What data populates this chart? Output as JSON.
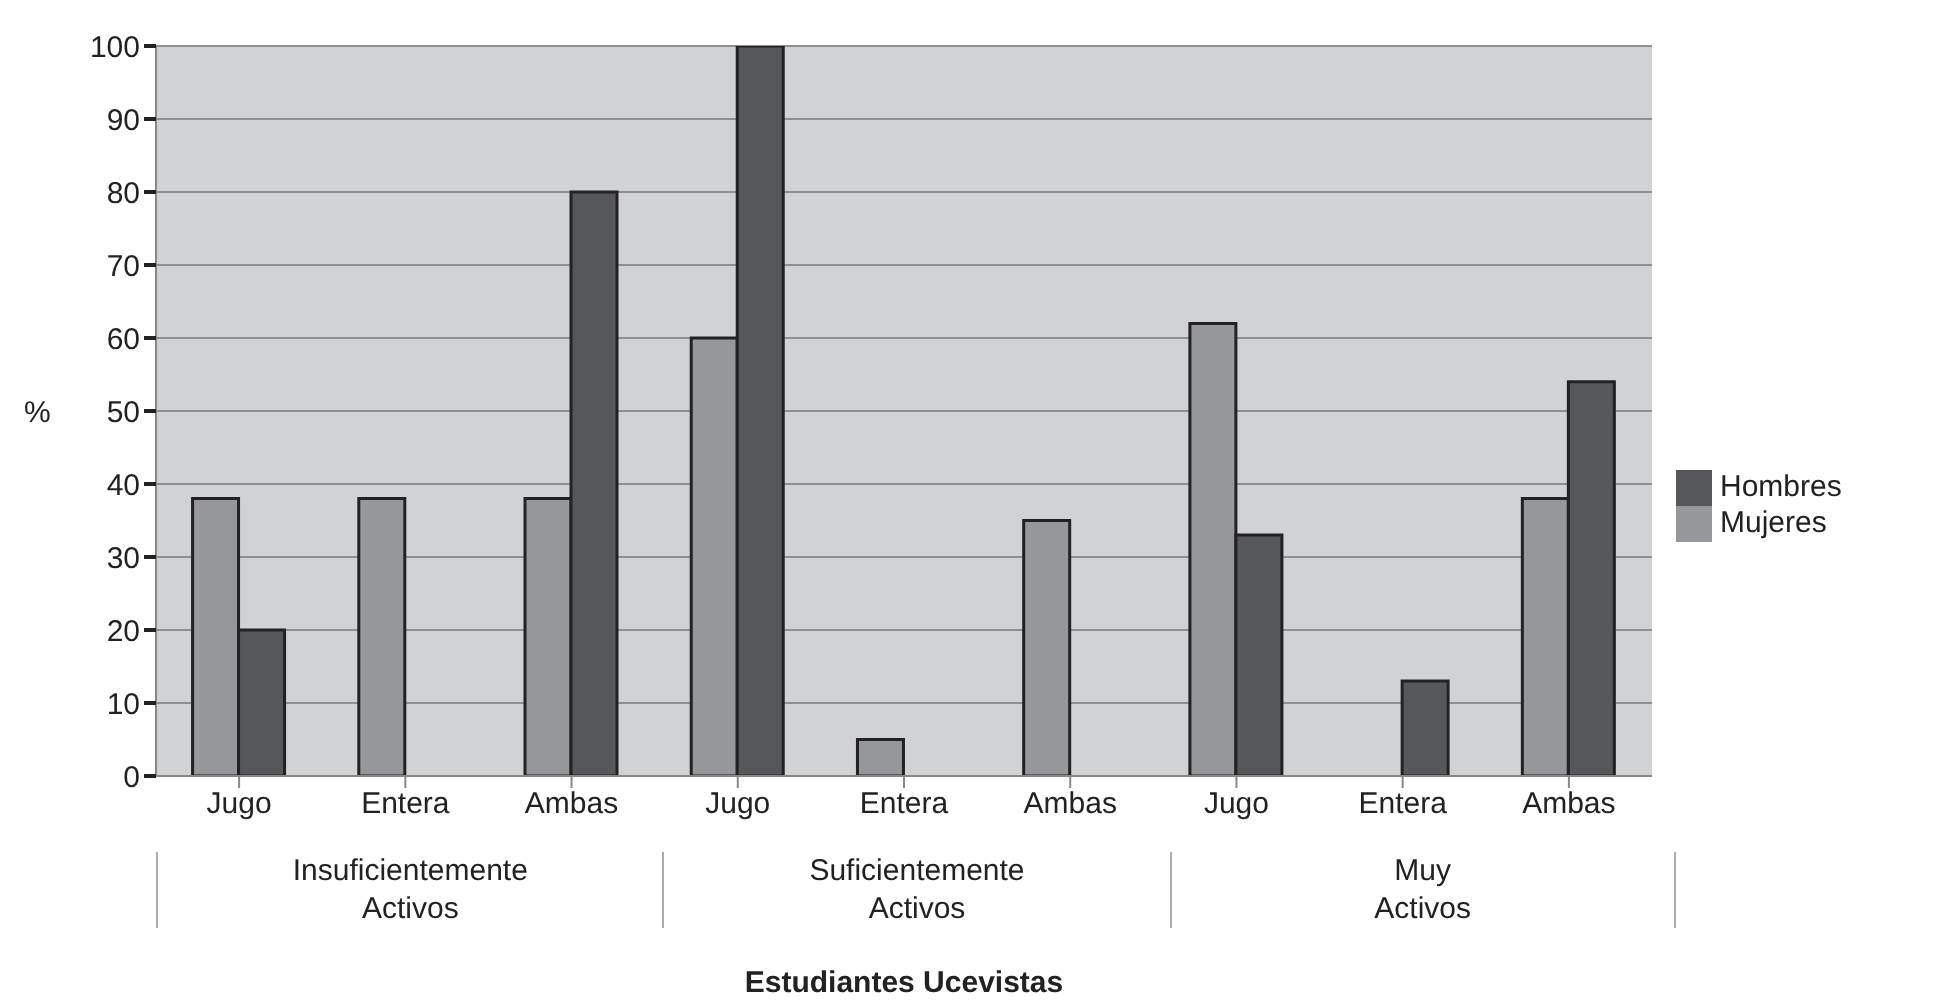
{
  "chart_data": {
    "type": "bar",
    "ylabel": "%",
    "xlabel": "Estudiantes Ucevistas",
    "categories": [
      "Jugo",
      "Entera",
      "Ambas",
      "Jugo",
      "Entera",
      "Ambas",
      "Jugo",
      "Entera",
      "Ambas"
    ],
    "series": [
      {
        "name": "Mujeres",
        "color": "#96979a",
        "values": [
          38,
          38,
          38,
          60,
          5,
          35,
          62,
          null,
          38
        ]
      },
      {
        "name": "Hombres",
        "color": "#56575a",
        "values": [
          20,
          null,
          80,
          100,
          null,
          null,
          33,
          13,
          54
        ]
      }
    ],
    "annotations": [
      "Insuficientemente Activos",
      "Suficientemente Activos",
      "Muy Activos"
    ],
    "ylim": [
      0,
      100
    ],
    "yticks": [
      0,
      10,
      20,
      30,
      40,
      50,
      60,
      70,
      80,
      90,
      100
    ],
    "grid": "y",
    "legend": "right"
  }
}
